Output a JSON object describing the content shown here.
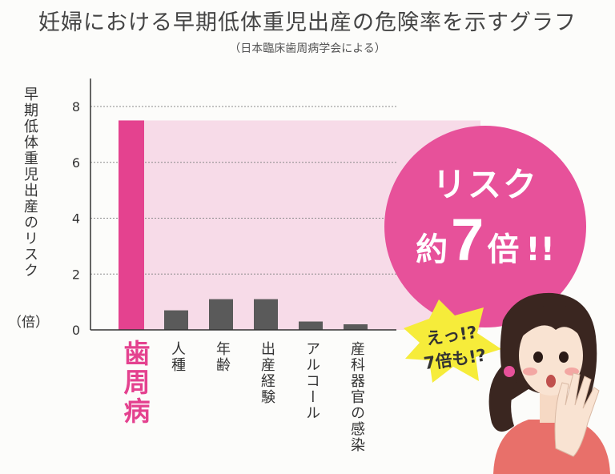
{
  "title": "妊婦における早期低体重児出産の危険率を示すグラフ",
  "subtitle": "（日本臨床歯周病学会による）",
  "ylabel": "早期低体重児出産のリスク",
  "ylabel_unit": "（倍）",
  "bubble": {
    "line1": "リスク",
    "pre": "約",
    "num": "7",
    "post": "倍",
    "exclaim": "!!"
  },
  "exclaim": {
    "line1": "えっ!?",
    "line2": "7倍も!?"
  },
  "colors": {
    "highlight_bar": "#e4428f",
    "other_bar": "#5a5a5a",
    "band": "#f7dbe8",
    "bubble": "#e7519a",
    "burst": "#f6ec3a"
  },
  "chart_data": {
    "type": "bar",
    "title": "妊婦における早期低体重児出産の危険率を示すグラフ",
    "subtitle": "（日本臨床歯周病学会による）",
    "ylabel": "早期低体重児出産のリスク（倍）",
    "xlabel": "",
    "categories": [
      "歯周病",
      "人種",
      "年齢",
      "出産経験",
      "アルコール",
      "産科器官の感染"
    ],
    "values": [
      7.5,
      0.7,
      1.1,
      1.1,
      0.3,
      0.2
    ],
    "highlight_index": 0,
    "ylim": [
      0,
      9
    ],
    "yticks": [
      0,
      2,
      4,
      6,
      8
    ],
    "grid": true
  }
}
